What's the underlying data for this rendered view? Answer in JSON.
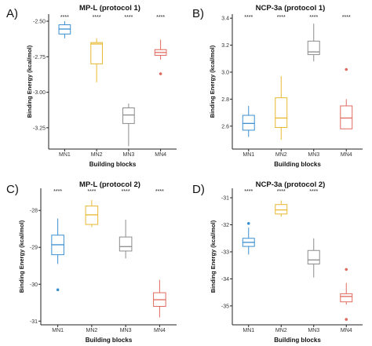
{
  "chart_data": [
    {
      "type": "box",
      "panel_label": "A)",
      "title": "MP-L (protocol 1)",
      "xlabel": "Building blocks",
      "ylabel": "Binding Energy (kcal/mol)",
      "categories": [
        "MN1",
        "MN2",
        "MN3",
        "MN4"
      ],
      "yticks": [
        -2.5,
        -2.75,
        -3.0,
        -3.25
      ],
      "ytick_labels": [
        "-2.50",
        "-2.75",
        "-3.00",
        "-3.25"
      ],
      "ylim": [
        -3.4,
        -2.45
      ],
      "significance": [
        "****",
        "****",
        "****",
        "****"
      ],
      "boxes": [
        {
          "whislo": -2.62,
          "q1": -2.59,
          "med": -2.555,
          "q3": -2.525,
          "whishi": -2.5,
          "outliers": []
        },
        {
          "whislo": -2.93,
          "q1": -2.8,
          "med": -2.66,
          "q3": -2.65,
          "whishi": -2.62,
          "outliers": []
        },
        {
          "whislo": -3.38,
          "q1": -3.22,
          "med": -3.16,
          "q3": -3.11,
          "whishi": -3.08,
          "outliers": []
        },
        {
          "whislo": -2.77,
          "q1": -2.74,
          "med": -2.72,
          "q3": -2.7,
          "whishi": -2.63,
          "outliers": [
            -2.87
          ]
        }
      ],
      "colors": [
        "#3a8fd1",
        "#e8b830",
        "#8c8c8c",
        "#e06a60"
      ]
    },
    {
      "type": "box",
      "panel_label": "B)",
      "title": "NCP-3a (protocol 1)",
      "xlabel": "Building blocks",
      "ylabel": "Binding Energy (kcal/mol)",
      "categories": [
        "MN1",
        "MN2",
        "MN3",
        "MN4"
      ],
      "yticks": [
        2.6,
        2.8,
        3.0,
        3.2,
        3.4
      ],
      "ytick_labels": [
        "2.6",
        "2.8",
        "3.0",
        "3.2",
        "3.4"
      ],
      "ylim": [
        2.43,
        3.43
      ],
      "significance": [
        "****",
        "****",
        "****",
        "****"
      ],
      "boxes": [
        {
          "whislo": 2.52,
          "q1": 2.57,
          "med": 2.62,
          "q3": 2.68,
          "whishi": 2.75,
          "outliers": []
        },
        {
          "whislo": 2.5,
          "q1": 2.59,
          "med": 2.66,
          "q3": 2.81,
          "whishi": 2.97,
          "outliers": []
        },
        {
          "whislo": 3.08,
          "q1": 3.13,
          "med": 3.15,
          "q3": 3.23,
          "whishi": 3.36,
          "outliers": []
        },
        {
          "whislo": 2.58,
          "q1": 2.58,
          "med": 2.66,
          "q3": 2.75,
          "whishi": 2.8,
          "outliers": [
            3.02
          ]
        }
      ],
      "colors": [
        "#3a8fd1",
        "#e8b830",
        "#8c8c8c",
        "#e06a60"
      ]
    },
    {
      "type": "box",
      "panel_label": "C)",
      "title": "MP-L (protocol 2)",
      "xlabel": "Building blocks",
      "ylabel": "Binding Energy (kcal/mol)",
      "categories": [
        "MN1",
        "MN2",
        "MN3",
        "MN4"
      ],
      "yticks": [
        -28,
        -29,
        -30,
        -31
      ],
      "ytick_labels": [
        "-28",
        "-29",
        "-30",
        "-31"
      ],
      "ylim": [
        -31.1,
        -27.4
      ],
      "significance": [
        "****",
        "****",
        "****",
        "****"
      ],
      "boxes": [
        {
          "whislo": -29.45,
          "q1": -29.2,
          "med": -28.93,
          "q3": -28.67,
          "whishi": -28.22,
          "outliers": [
            -30.15
          ]
        },
        {
          "whislo": -28.45,
          "q1": -28.38,
          "med": -28.12,
          "q3": -27.88,
          "whishi": -27.72,
          "outliers": []
        },
        {
          "whislo": -29.3,
          "q1": -29.1,
          "med": -28.98,
          "q3": -28.72,
          "whishi": -28.25,
          "outliers": []
        },
        {
          "whislo": -30.9,
          "q1": -30.6,
          "med": -30.42,
          "q3": -30.23,
          "whishi": -29.88,
          "outliers": []
        }
      ],
      "colors": [
        "#3a8fd1",
        "#e8b830",
        "#8c8c8c",
        "#e06a60"
      ]
    },
    {
      "type": "box",
      "panel_label": "D)",
      "title": "NCP-3a (protocol 2)",
      "xlabel": "Building blocks",
      "ylabel": "Binding Energy (kcal/mol)",
      "categories": [
        "MN1",
        "MN2",
        "MN3",
        "MN4"
      ],
      "yticks": [
        -31,
        -32,
        -33,
        -34,
        -35
      ],
      "ytick_labels": [
        "-31",
        "-32",
        "-33",
        "-34",
        "-35"
      ],
      "ylim": [
        -35.7,
        -30.65
      ],
      "significance": [
        "****",
        "****",
        "****",
        ""
      ],
      "boxes": [
        {
          "whislo": -33.1,
          "q1": -32.8,
          "med": -32.65,
          "q3": -32.5,
          "whishi": -32.1,
          "outliers": [
            -31.95
          ]
        },
        {
          "whislo": -31.7,
          "q1": -31.6,
          "med": -31.45,
          "q3": -31.25,
          "whishi": -31.1,
          "outliers": []
        },
        {
          "whislo": -33.95,
          "q1": -33.45,
          "med": -33.3,
          "q3": -32.95,
          "whishi": -32.5,
          "outliers": []
        },
        {
          "whislo": -34.95,
          "q1": -34.85,
          "med": -34.65,
          "q3": -34.55,
          "whishi": -34.15,
          "outliers": [
            -33.65,
            -35.5
          ]
        }
      ],
      "colors": [
        "#3a8fd1",
        "#e8b830",
        "#8c8c8c",
        "#e06a60"
      ]
    }
  ]
}
